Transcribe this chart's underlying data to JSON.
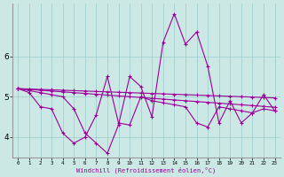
{
  "xlabel": "Windchill (Refroidissement éolien,°C)",
  "ylabel": "",
  "background_color": "#cce8e4",
  "grid_color": "#99cccc",
  "line_color": "#990099",
  "xlim": [
    -0.5,
    23.5
  ],
  "ylim": [
    3.5,
    7.3
  ],
  "xticks": [
    0,
    1,
    2,
    3,
    4,
    5,
    6,
    7,
    8,
    9,
    10,
    11,
    12,
    13,
    14,
    15,
    16,
    17,
    18,
    19,
    20,
    21,
    22,
    23
  ],
  "yticks": [
    4,
    5,
    6
  ],
  "series": [
    [
      5.2,
      5.18,
      5.16,
      5.14,
      5.12,
      5.1,
      5.08,
      5.06,
      5.04,
      5.02,
      5.0,
      4.98,
      4.96,
      4.94,
      4.92,
      4.9,
      4.88,
      4.86,
      4.84,
      4.82,
      4.8,
      4.78,
      4.76,
      4.74
    ],
    [
      5.2,
      5.15,
      5.1,
      5.05,
      5.0,
      4.7,
      4.1,
      3.85,
      3.6,
      4.3,
      5.5,
      5.25,
      4.5,
      6.35,
      7.05,
      6.3,
      6.6,
      5.75,
      4.35,
      4.9,
      4.35,
      4.6,
      5.05,
      4.65
    ],
    [
      5.2,
      5.19,
      5.18,
      5.17,
      5.16,
      5.15,
      5.14,
      5.13,
      5.12,
      5.11,
      5.1,
      5.09,
      5.08,
      5.07,
      5.06,
      5.05,
      5.04,
      5.03,
      5.02,
      5.01,
      5.0,
      4.99,
      4.98,
      4.97
    ],
    [
      5.2,
      5.1,
      4.75,
      4.7,
      4.1,
      3.85,
      4.0,
      4.55,
      5.5,
      4.35,
      4.3,
      5.0,
      4.9,
      4.85,
      4.8,
      4.75,
      4.35,
      4.25,
      4.75,
      4.7,
      4.65,
      4.6,
      4.7,
      4.65
    ]
  ]
}
